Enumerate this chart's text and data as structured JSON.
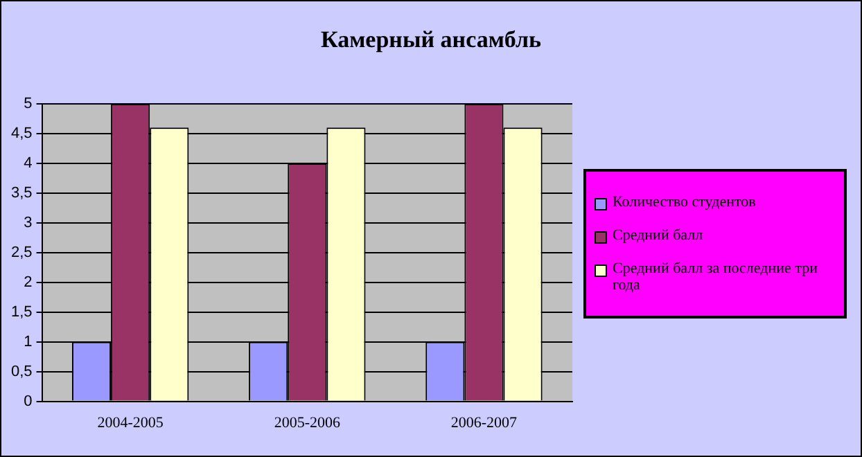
{
  "chart_data": {
    "type": "bar",
    "title": "Камерный ансамбль",
    "categories": [
      "2004-2005",
      "2005-2006",
      "2006-2007"
    ],
    "series": [
      {
        "name": "Количество студентов",
        "color": "#9999ff",
        "values": [
          1,
          1,
          1
        ]
      },
      {
        "name": "Средний балл",
        "color": "#993366",
        "values": [
          5,
          4,
          5
        ]
      },
      {
        "name": "Средний балл за последние три года",
        "color": "#ffffcc",
        "values": [
          4.6,
          4.6,
          4.6
        ]
      }
    ],
    "ylim": [
      0,
      5
    ],
    "yticks": [
      0,
      {
        "value": 0.5,
        "label": "0,5"
      },
      1,
      {
        "value": 1.5,
        "label": "1,5"
      },
      2,
      {
        "value": 2.5,
        "label": "2,5"
      },
      3,
      {
        "value": 3.5,
        "label": "3,5"
      },
      4,
      {
        "value": 4.5,
        "label": "4,5"
      },
      5
    ],
    "grid": "y",
    "legend": "right"
  }
}
